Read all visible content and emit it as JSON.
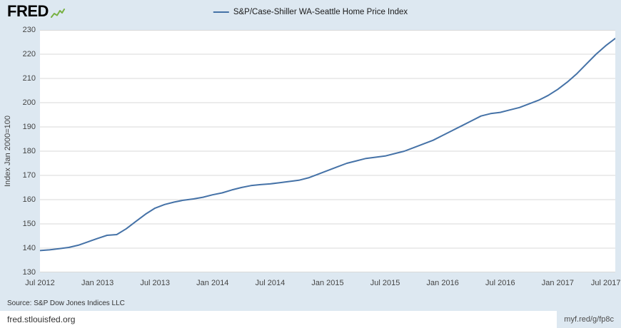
{
  "colors": {
    "frame_background": "#dde8f1",
    "plot_background": "#ffffff",
    "logo_spark_green": "#78b143"
  },
  "header": {
    "logo_text": "FRED"
  },
  "legend": {
    "label": "S&P/Case-Shiller WA-Seattle Home Price Index"
  },
  "footer": {
    "source": "Source: S&P Dow Jones Indices LLC",
    "site": "fred.stlouisfed.org",
    "short_link": "myf.red/g/fp8c"
  },
  "chart_data": {
    "type": "line",
    "title": "S&P/Case-Shiller WA-Seattle Home Price Index",
    "xlabel": "",
    "ylabel": "Index Jan 2000=100",
    "ylim": [
      130,
      230
    ],
    "y_step": 10,
    "grid": "horizontal",
    "legend_position": "top-center",
    "frequency": "monthly",
    "x_range": [
      "Jul 2012",
      "Jul 2017"
    ],
    "x_tick_labels": [
      "Jul 2012",
      "Jan 2013",
      "Jul 2013",
      "Jan 2014",
      "Jul 2014",
      "Jan 2015",
      "Jul 2015",
      "Jan 2016",
      "Jul 2016",
      "Jan 2017",
      "Jul 2017"
    ],
    "line_color": "#4572a7",
    "grid_color": "#d9d9d9",
    "values": [
      139.0,
      139.3,
      139.8,
      140.3,
      141.2,
      142.6,
      144.0,
      145.3,
      145.6,
      148.0,
      151.0,
      154.0,
      156.5,
      158.0,
      159.0,
      159.8,
      160.3,
      161.0,
      162.0,
      162.8,
      164.0,
      165.0,
      165.8,
      166.2,
      166.5,
      167.0,
      167.5,
      168.0,
      169.0,
      170.5,
      172.0,
      173.5,
      175.0,
      176.0,
      177.0,
      177.5,
      178.0,
      179.0,
      180.0,
      181.5,
      183.0,
      184.5,
      186.5,
      188.5,
      190.5,
      192.5,
      194.5,
      195.5,
      196.0,
      197.0,
      198.0,
      199.5,
      201.0,
      203.0,
      205.5,
      208.5,
      212.0,
      216.0,
      220.0,
      223.5,
      226.5
    ]
  }
}
